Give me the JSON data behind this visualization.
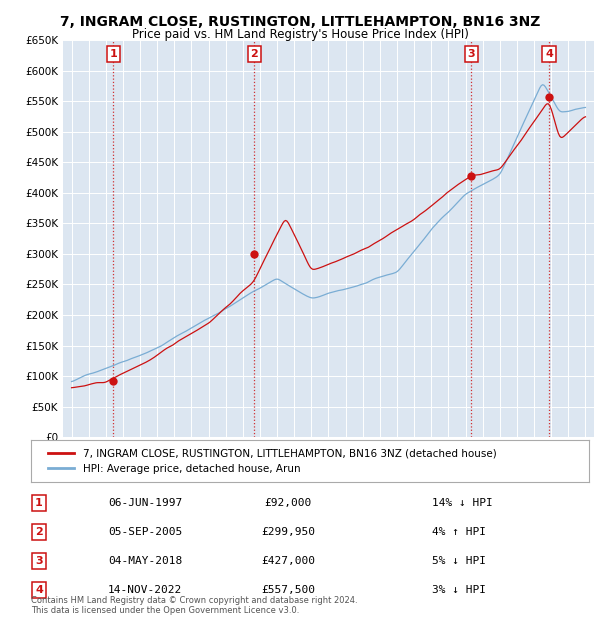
{
  "title": "7, INGRAM CLOSE, RUSTINGTON, LITTLEHAMPTON, BN16 3NZ",
  "subtitle": "Price paid vs. HM Land Registry's House Price Index (HPI)",
  "bg_color": "#dce6f1",
  "hpi_color": "#7aadd4",
  "price_color": "#cc1111",
  "ylim": [
    0,
    650000
  ],
  "yticks": [
    0,
    50000,
    100000,
    150000,
    200000,
    250000,
    300000,
    350000,
    400000,
    450000,
    500000,
    550000,
    600000,
    650000
  ],
  "xlim_left": 1994.5,
  "xlim_right": 2025.5,
  "sale_years": [
    1997.44,
    2005.67,
    2018.34,
    2022.87
  ],
  "sale_prices": [
    92000,
    299950,
    427000,
    557500
  ],
  "sale_labels": [
    "1",
    "2",
    "3",
    "4"
  ],
  "legend_label_price": "7, INGRAM CLOSE, RUSTINGTON, LITTLEHAMPTON, BN16 3NZ (detached house)",
  "legend_label_hpi": "HPI: Average price, detached house, Arun",
  "table_rows": [
    {
      "num": "1",
      "date": "06-JUN-1997",
      "price": "£92,000",
      "hpi": "14% ↓ HPI"
    },
    {
      "num": "2",
      "date": "05-SEP-2005",
      "price": "£299,950",
      "hpi": "4% ↑ HPI"
    },
    {
      "num": "3",
      "date": "04-MAY-2018",
      "price": "£427,000",
      "hpi": "5% ↓ HPI"
    },
    {
      "num": "4",
      "date": "14-NOV-2022",
      "price": "£557,500",
      "hpi": "3% ↓ HPI"
    }
  ],
  "footer": "Contains HM Land Registry data © Crown copyright and database right 2024.\nThis data is licensed under the Open Government Licence v3.0."
}
